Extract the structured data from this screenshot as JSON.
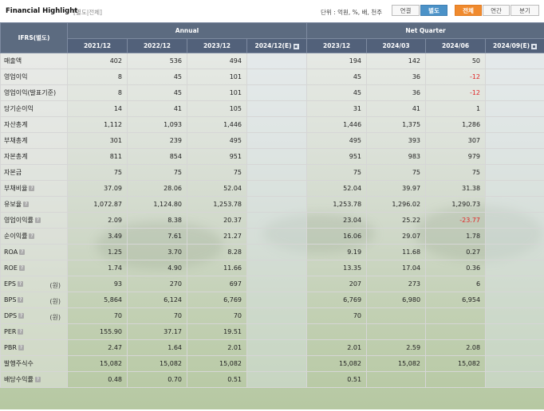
{
  "header": {
    "title": "Financial Highlight",
    "subtitle": "[별도|전체]",
    "unit": "단위 : 억원, %, 배, 천주",
    "consolidation_tabs": [
      "연결",
      "별도"
    ],
    "period_tabs": [
      "전체",
      "연간",
      "분기"
    ]
  },
  "table": {
    "corner": "IFRS(별도)",
    "group_annual": "Annual",
    "group_quarter": "Net Quarter",
    "columns": [
      "2021/12",
      "2022/12",
      "2023/12",
      "2024/12(E)",
      "2023/12",
      "2024/03",
      "2024/06",
      "2024/09(E)"
    ],
    "rows": [
      {
        "label": "매출액",
        "unit": "",
        "values": [
          "402",
          "536",
          "494",
          "",
          "194",
          "142",
          "50",
          ""
        ]
      },
      {
        "label": "영업이익",
        "unit": "",
        "values": [
          "8",
          "45",
          "101",
          "",
          "45",
          "36",
          "-12",
          ""
        ]
      },
      {
        "label": "영업이익(발표기준)",
        "unit": "",
        "values": [
          "8",
          "45",
          "101",
          "",
          "45",
          "36",
          "-12",
          ""
        ]
      },
      {
        "label": "당기순이익",
        "unit": "",
        "values": [
          "14",
          "41",
          "105",
          "",
          "31",
          "41",
          "1",
          ""
        ]
      },
      {
        "label": "자산총계",
        "unit": "",
        "values": [
          "1,112",
          "1,093",
          "1,446",
          "",
          "1,446",
          "1,375",
          "1,286",
          ""
        ]
      },
      {
        "label": "부채총계",
        "unit": "",
        "values": [
          "301",
          "239",
          "495",
          "",
          "495",
          "393",
          "307",
          ""
        ]
      },
      {
        "label": "자본총계",
        "unit": "",
        "values": [
          "811",
          "854",
          "951",
          "",
          "951",
          "983",
          "979",
          ""
        ]
      },
      {
        "label": "자본금",
        "unit": "",
        "values": [
          "75",
          "75",
          "75",
          "",
          "75",
          "75",
          "75",
          ""
        ]
      },
      {
        "label": "부채비율",
        "unit": "",
        "values": [
          "37.09",
          "28.06",
          "52.04",
          "",
          "52.04",
          "39.97",
          "31.38",
          ""
        ]
      },
      {
        "label": "유보율",
        "unit": "",
        "values": [
          "1,072.87",
          "1,124.80",
          "1,253.78",
          "",
          "1,253.78",
          "1,296.02",
          "1,290.73",
          ""
        ]
      },
      {
        "label": "영업이익률",
        "unit": "",
        "values": [
          "2.09",
          "8.38",
          "20.37",
          "",
          "23.04",
          "25.22",
          "-23.77",
          ""
        ]
      },
      {
        "label": "순이익률",
        "unit": "",
        "values": [
          "3.49",
          "7.61",
          "21.27",
          "",
          "16.06",
          "29.07",
          "1.78",
          ""
        ]
      },
      {
        "label": "ROA",
        "unit": "",
        "values": [
          "1.25",
          "3.70",
          "8.28",
          "",
          "9.19",
          "11.68",
          "0.27",
          ""
        ]
      },
      {
        "label": "ROE",
        "unit": "",
        "values": [
          "1.74",
          "4.90",
          "11.66",
          "",
          "13.35",
          "17.04",
          "0.36",
          ""
        ]
      },
      {
        "label": "EPS",
        "unit": "(원)",
        "values": [
          "93",
          "270",
          "697",
          "",
          "207",
          "273",
          "6",
          ""
        ]
      },
      {
        "label": "BPS",
        "unit": "(원)",
        "values": [
          "5,864",
          "6,124",
          "6,769",
          "",
          "6,769",
          "6,980",
          "6,954",
          ""
        ]
      },
      {
        "label": "DPS",
        "unit": "(원)",
        "values": [
          "70",
          "70",
          "70",
          "",
          "70",
          "",
          "",
          ""
        ]
      },
      {
        "label": "PER",
        "unit": "",
        "values": [
          "155.90",
          "37.17",
          "19.51",
          "",
          "",
          "",
          "",
          ""
        ]
      },
      {
        "label": "PBR",
        "unit": "",
        "values": [
          "2.47",
          "1.64",
          "2.01",
          "",
          "2.01",
          "2.59",
          "2.08",
          ""
        ]
      },
      {
        "label": "발행주식수",
        "unit": "",
        "values": [
          "15,082",
          "15,082",
          "15,082",
          "",
          "15,082",
          "15,082",
          "15,082",
          ""
        ]
      },
      {
        "label": "배당수익률",
        "unit": "",
        "values": [
          "0.48",
          "0.70",
          "0.51",
          "",
          "0.51",
          "",
          "",
          ""
        ]
      }
    ],
    "info_icon_rows": [
      8,
      9,
      10,
      11,
      12,
      13,
      14,
      15,
      16,
      17,
      18,
      20
    ]
  },
  "colors": {
    "header_bg": "#5c6b80",
    "negative": "#e02424",
    "active_blue": "#4b92c8",
    "active_orange": "#f08a2e"
  }
}
